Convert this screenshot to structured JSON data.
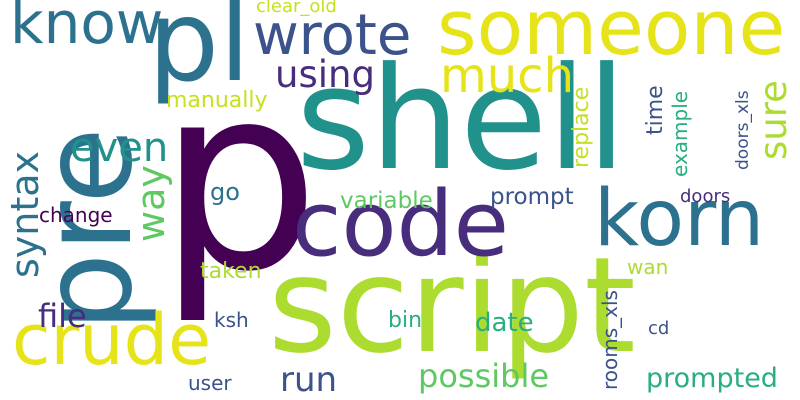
{
  "palette": {
    "deep_purple": "#440154",
    "indigo": "#472d7b",
    "blue_slate": "#3b528b",
    "steel_blue": "#2c728e",
    "teal": "#21918c",
    "green_teal": "#28ae80",
    "green": "#5ec962",
    "lime": "#addc30",
    "yellow_green": "#c7e020",
    "yellow": "#e6e419"
  },
  "words": [
    {
      "text": "p",
      "color": "#440154"
    },
    {
      "text": "shell",
      "color": "#21918c"
    },
    {
      "text": "script",
      "color": "#addc30"
    },
    {
      "text": "pre",
      "color": "#2c728e"
    },
    {
      "text": "pl",
      "color": "#2c728e"
    },
    {
      "text": "code",
      "color": "#472d7b"
    },
    {
      "text": "someone",
      "color": "#e6e419"
    },
    {
      "text": "korn",
      "color": "#2c728e"
    },
    {
      "text": "crude",
      "color": "#e6e419"
    },
    {
      "text": "know",
      "color": "#2c728e"
    },
    {
      "text": "wrote",
      "color": "#3b528b"
    },
    {
      "text": "much",
      "color": "#e6e419"
    },
    {
      "text": "using",
      "color": "#472d7b"
    },
    {
      "text": "syntax",
      "color": "#2c728e"
    },
    {
      "text": "even",
      "color": "#21918c"
    },
    {
      "text": "way",
      "color": "#5ec962"
    },
    {
      "text": "sure",
      "color": "#addc30"
    },
    {
      "text": "file",
      "color": "#472d7b"
    },
    {
      "text": "run",
      "color": "#3b528b"
    },
    {
      "text": "possible",
      "color": "#5ec962"
    },
    {
      "text": "prompted",
      "color": "#28ae80"
    },
    {
      "text": "manually",
      "color": "#c7e020"
    },
    {
      "text": "clear_old",
      "color": "#c7e020"
    },
    {
      "text": "replace",
      "color": "#c7e020"
    },
    {
      "text": "time",
      "color": "#3b528b"
    },
    {
      "text": "example",
      "color": "#28ae80"
    },
    {
      "text": "doors_xls",
      "color": "#3b528b"
    },
    {
      "text": "go",
      "color": "#2c728e"
    },
    {
      "text": "variable",
      "color": "#5ec962"
    },
    {
      "text": "prompt",
      "color": "#3b528b"
    },
    {
      "text": "change",
      "color": "#440154"
    },
    {
      "text": "doors",
      "color": "#472d7b"
    },
    {
      "text": "taken",
      "color": "#addc30"
    },
    {
      "text": "wan",
      "color": "#addc30"
    },
    {
      "text": "ksh",
      "color": "#3b528b"
    },
    {
      "text": "bin",
      "color": "#28ae80"
    },
    {
      "text": "date",
      "color": "#28ae80"
    },
    {
      "text": "cd",
      "color": "#3b528b"
    },
    {
      "text": "rooms_xls",
      "color": "#3b528b"
    },
    {
      "text": "user",
      "color": "#3b528b"
    }
  ]
}
